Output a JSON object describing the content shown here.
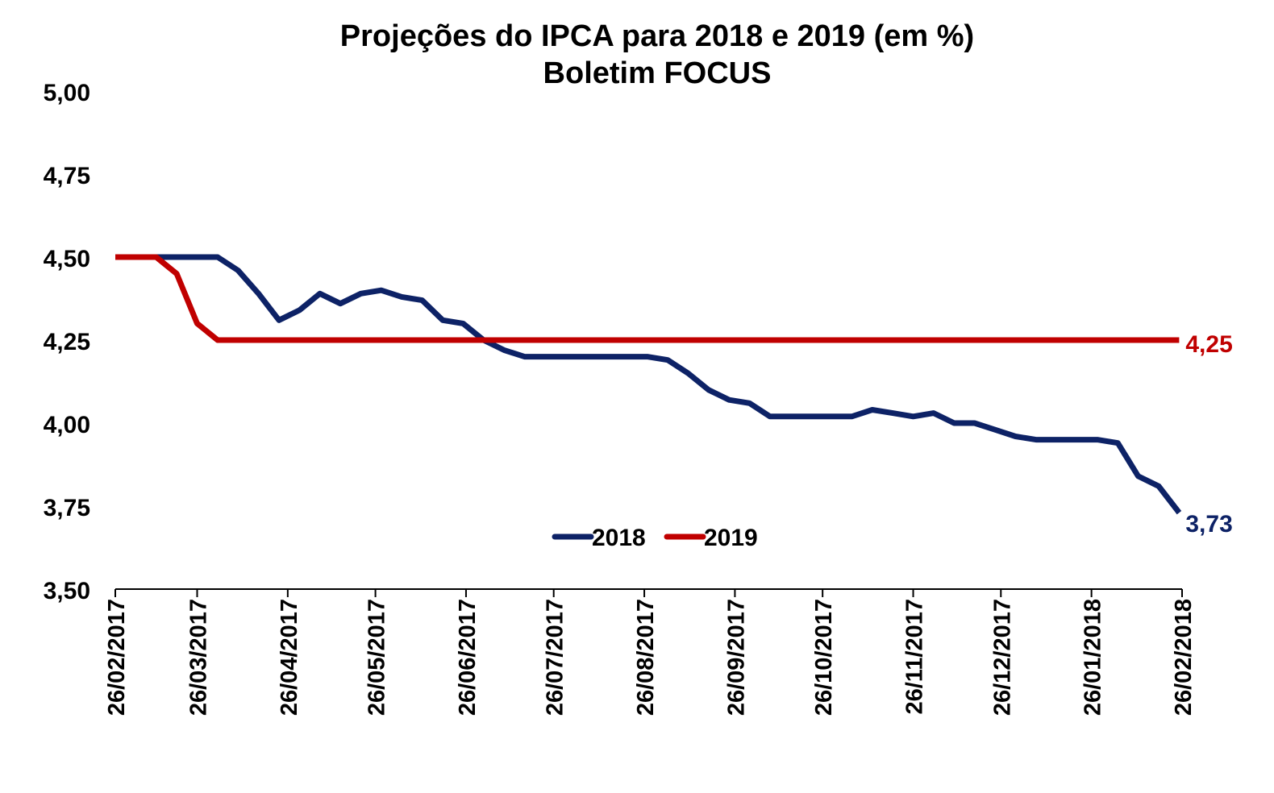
{
  "chart_data": {
    "type": "line",
    "title": "Projeções do IPCA para 2018 e 2019 (em %)",
    "subtitle": "Boletim FOCUS",
    "xlabel": "",
    "ylabel": "",
    "ylim": [
      3.5,
      5.0
    ],
    "yticks": [
      "3,50",
      "3,75",
      "4,00",
      "4,25",
      "4,50",
      "4,75",
      "5,00"
    ],
    "xlim": [
      "26/02/2017",
      "26/02/2018"
    ],
    "xticks": [
      "26/02/2017",
      "26/03/2017",
      "26/04/2017",
      "26/05/2017",
      "26/06/2017",
      "26/07/2017",
      "26/08/2017",
      "26/09/2017",
      "26/10/2017",
      "26/11/2017",
      "26/12/2017",
      "26/01/2018",
      "26/02/2018"
    ],
    "grid": false,
    "legend": "bottom-center",
    "series": [
      {
        "name": "2018",
        "color": "#0d2266",
        "end_label": "3,73",
        "points": [
          [
            "26/02/2017",
            4.5
          ],
          [
            "05/03/2017",
            4.5
          ],
          [
            "12/03/2017",
            4.5
          ],
          [
            "19/03/2017",
            4.5
          ],
          [
            "26/03/2017",
            4.5
          ],
          [
            "02/04/2017",
            4.5
          ],
          [
            "09/04/2017",
            4.46
          ],
          [
            "16/04/2017",
            4.39
          ],
          [
            "23/04/2017",
            4.31
          ],
          [
            "30/04/2017",
            4.34
          ],
          [
            "07/05/2017",
            4.39
          ],
          [
            "14/05/2017",
            4.36
          ],
          [
            "21/05/2017",
            4.39
          ],
          [
            "28/05/2017",
            4.4
          ],
          [
            "04/06/2017",
            4.38
          ],
          [
            "11/06/2017",
            4.37
          ],
          [
            "18/06/2017",
            4.31
          ],
          [
            "25/06/2017",
            4.3
          ],
          [
            "02/07/2017",
            4.25
          ],
          [
            "09/07/2017",
            4.22
          ],
          [
            "16/07/2017",
            4.2
          ],
          [
            "23/07/2017",
            4.2
          ],
          [
            "30/07/2017",
            4.2
          ],
          [
            "06/08/2017",
            4.2
          ],
          [
            "13/08/2017",
            4.2
          ],
          [
            "20/08/2017",
            4.2
          ],
          [
            "27/08/2017",
            4.2
          ],
          [
            "03/09/2017",
            4.19
          ],
          [
            "10/09/2017",
            4.15
          ],
          [
            "17/09/2017",
            4.1
          ],
          [
            "24/09/2017",
            4.07
          ],
          [
            "01/10/2017",
            4.06
          ],
          [
            "08/10/2017",
            4.02
          ],
          [
            "15/10/2017",
            4.02
          ],
          [
            "22/10/2017",
            4.02
          ],
          [
            "29/10/2017",
            4.02
          ],
          [
            "05/11/2017",
            4.02
          ],
          [
            "12/11/2017",
            4.04
          ],
          [
            "19/11/2017",
            4.03
          ],
          [
            "26/11/2017",
            4.02
          ],
          [
            "03/12/2017",
            4.03
          ],
          [
            "10/12/2017",
            4.0
          ],
          [
            "17/12/2017",
            4.0
          ],
          [
            "24/12/2017",
            3.98
          ],
          [
            "31/12/2017",
            3.96
          ],
          [
            "07/01/2018",
            3.95
          ],
          [
            "14/01/2018",
            3.95
          ],
          [
            "21/01/2018",
            3.95
          ],
          [
            "28/01/2018",
            3.95
          ],
          [
            "04/02/2018",
            3.94
          ],
          [
            "11/02/2018",
            3.84
          ],
          [
            "18/02/2018",
            3.81
          ],
          [
            "25/02/2018",
            3.73
          ]
        ]
      },
      {
        "name": "2019",
        "color": "#c00000",
        "end_label": "4,25",
        "points": [
          [
            "26/02/2017",
            4.5
          ],
          [
            "05/03/2017",
            4.5
          ],
          [
            "12/03/2017",
            4.5
          ],
          [
            "19/03/2017",
            4.45
          ],
          [
            "26/03/2017",
            4.3
          ],
          [
            "02/04/2017",
            4.25
          ],
          [
            "25/02/2018",
            4.25
          ]
        ]
      }
    ]
  }
}
